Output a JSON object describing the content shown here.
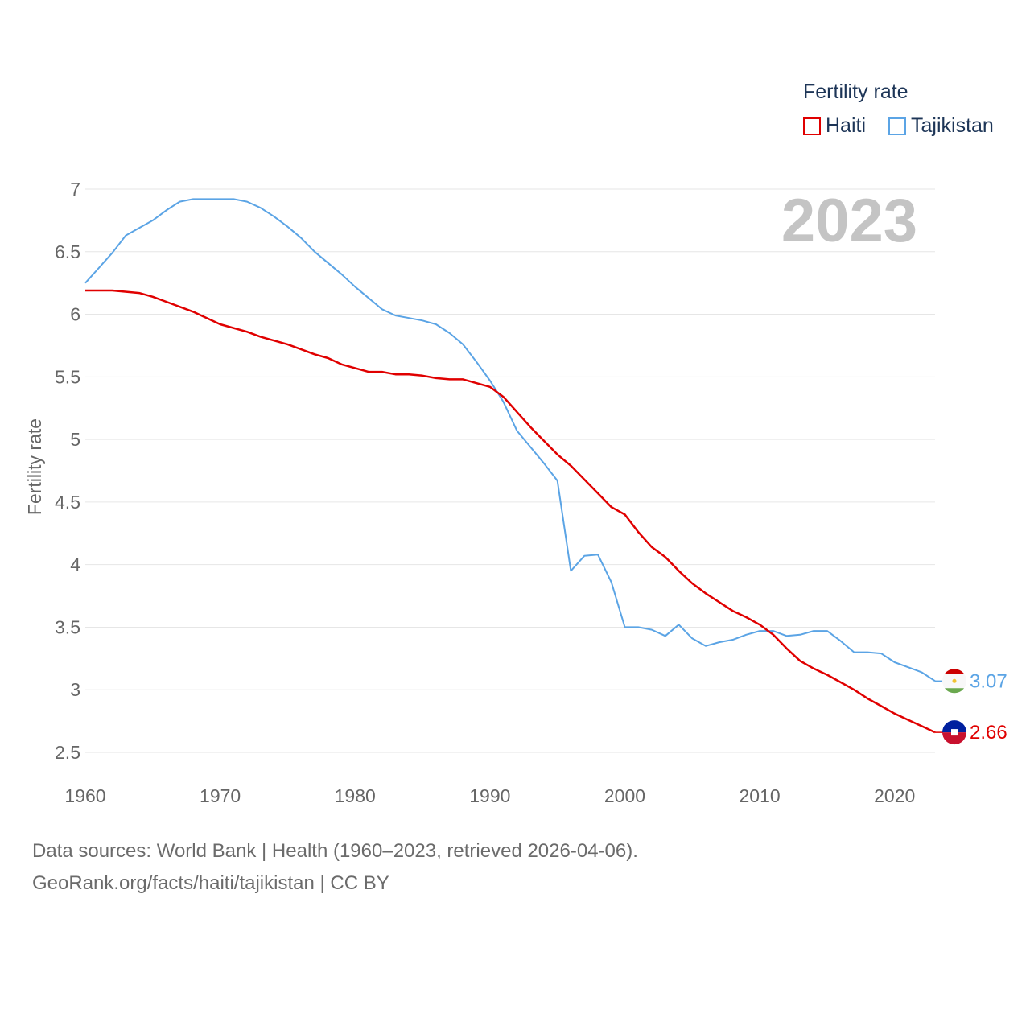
{
  "chart_data": {
    "type": "line",
    "legend_title": "Fertility rate",
    "ylabel": "Fertility rate",
    "xlabel": "",
    "year_label": "2023",
    "xlim": [
      1960,
      2023
    ],
    "ylim": [
      2.5,
      7
    ],
    "x_ticks": [
      1960,
      1970,
      1980,
      1990,
      2000,
      2010,
      2020
    ],
    "y_ticks": [
      2.5,
      3,
      3.5,
      4,
      4.5,
      5,
      5.5,
      6,
      6.5,
      7
    ],
    "y_tick_labels": [
      "2.5",
      "3",
      "3.5",
      "4",
      "4.5",
      "5",
      "5.5",
      "6",
      "6.5",
      "7"
    ],
    "grid": true,
    "legend_position": "top-right",
    "series": [
      {
        "name": "Haiti",
        "color": "#e00000",
        "end_label": "2.66",
        "values": [
          [
            1960,
            6.19
          ],
          [
            1962,
            6.19
          ],
          [
            1964,
            6.17
          ],
          [
            1965,
            6.14
          ],
          [
            1966,
            6.1
          ],
          [
            1968,
            6.02
          ],
          [
            1970,
            5.92
          ],
          [
            1972,
            5.86
          ],
          [
            1973,
            5.82
          ],
          [
            1975,
            5.76
          ],
          [
            1977,
            5.68
          ],
          [
            1978,
            5.65
          ],
          [
            1979,
            5.6
          ],
          [
            1981,
            5.54
          ],
          [
            1982,
            5.54
          ],
          [
            1983,
            5.52
          ],
          [
            1984,
            5.52
          ],
          [
            1985,
            5.51
          ],
          [
            1986,
            5.49
          ],
          [
            1987,
            5.48
          ],
          [
            1988,
            5.48
          ],
          [
            1990,
            5.42
          ],
          [
            1991,
            5.34
          ],
          [
            1992,
            5.22
          ],
          [
            1993,
            5.1
          ],
          [
            1994,
            4.99
          ],
          [
            1995,
            4.88
          ],
          [
            1996,
            4.79
          ],
          [
            1997,
            4.68
          ],
          [
            1998,
            4.57
          ],
          [
            1999,
            4.46
          ],
          [
            2000,
            4.4
          ],
          [
            2001,
            4.26
          ],
          [
            2002,
            4.14
          ],
          [
            2003,
            4.06
          ],
          [
            2004,
            3.95
          ],
          [
            2005,
            3.85
          ],
          [
            2006,
            3.77
          ],
          [
            2007,
            3.7
          ],
          [
            2008,
            3.63
          ],
          [
            2009,
            3.58
          ],
          [
            2010,
            3.52
          ],
          [
            2011,
            3.44
          ],
          [
            2012,
            3.33
          ],
          [
            2013,
            3.23
          ],
          [
            2014,
            3.17
          ],
          [
            2015,
            3.12
          ],
          [
            2016,
            3.06
          ],
          [
            2017,
            3.0
          ],
          [
            2018,
            2.93
          ],
          [
            2019,
            2.87
          ],
          [
            2020,
            2.81
          ],
          [
            2021,
            2.76
          ],
          [
            2022,
            2.71
          ],
          [
            2023,
            2.66
          ]
        ]
      },
      {
        "name": "Tajikistan",
        "color": "#5ba4e5",
        "end_label": "3.07",
        "values": [
          [
            1960,
            6.25
          ],
          [
            1961,
            6.37
          ],
          [
            1962,
            6.49
          ],
          [
            1963,
            6.63
          ],
          [
            1964,
            6.69
          ],
          [
            1965,
            6.75
          ],
          [
            1966,
            6.83
          ],
          [
            1967,
            6.9
          ],
          [
            1968,
            6.92
          ],
          [
            1969,
            6.92
          ],
          [
            1970,
            6.92
          ],
          [
            1971,
            6.92
          ],
          [
            1972,
            6.9
          ],
          [
            1973,
            6.85
          ],
          [
            1974,
            6.78
          ],
          [
            1975,
            6.7
          ],
          [
            1976,
            6.61
          ],
          [
            1977,
            6.5
          ],
          [
            1978,
            6.41
          ],
          [
            1979,
            6.32
          ],
          [
            1980,
            6.22
          ],
          [
            1981,
            6.13
          ],
          [
            1982,
            6.04
          ],
          [
            1983,
            5.99
          ],
          [
            1984,
            5.97
          ],
          [
            1985,
            5.95
          ],
          [
            1986,
            5.92
          ],
          [
            1987,
            5.85
          ],
          [
            1988,
            5.76
          ],
          [
            1989,
            5.62
          ],
          [
            1990,
            5.47
          ],
          [
            1991,
            5.3
          ],
          [
            1992,
            5.07
          ],
          [
            1993,
            4.94
          ],
          [
            1994,
            4.81
          ],
          [
            1995,
            4.67
          ],
          [
            1996,
            3.95
          ],
          [
            1997,
            4.07
          ],
          [
            1998,
            4.08
          ],
          [
            1999,
            3.86
          ],
          [
            2000,
            3.5
          ],
          [
            2001,
            3.5
          ],
          [
            2002,
            3.48
          ],
          [
            2003,
            3.43
          ],
          [
            2004,
            3.52
          ],
          [
            2005,
            3.41
          ],
          [
            2006,
            3.35
          ],
          [
            2007,
            3.38
          ],
          [
            2008,
            3.4
          ],
          [
            2009,
            3.44
          ],
          [
            2010,
            3.47
          ],
          [
            2011,
            3.47
          ],
          [
            2012,
            3.43
          ],
          [
            2013,
            3.44
          ],
          [
            2014,
            3.47
          ],
          [
            2015,
            3.47
          ],
          [
            2016,
            3.39
          ],
          [
            2017,
            3.3
          ],
          [
            2018,
            3.3
          ],
          [
            2019,
            3.29
          ],
          [
            2020,
            3.22
          ],
          [
            2021,
            3.18
          ],
          [
            2022,
            3.14
          ],
          [
            2023,
            3.07
          ]
        ]
      }
    ]
  },
  "legend": {
    "title": "Fertility rate",
    "items": [
      {
        "label": "Haiti"
      },
      {
        "label": "Tajikistan"
      }
    ]
  },
  "footer": {
    "source_line": "Data sources: World Bank | Health (1960–2023, retrieved 2026-04-06).",
    "credit_line": "GeoRank.org/facts/haiti/tajikistan | CC BY"
  }
}
